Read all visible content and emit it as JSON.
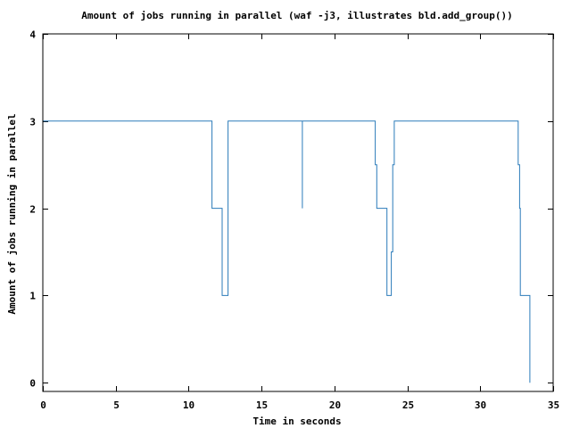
{
  "chart_data": {
    "type": "line",
    "title": "Amount of jobs running in parallel (waf -j3, illustrates bld.add_group())",
    "xlabel": "Time in seconds",
    "ylabel": "Amount of jobs running in parallel",
    "xlim": [
      0,
      35
    ],
    "ylim": [
      -0.1,
      4
    ],
    "xticks": [
      0,
      5,
      10,
      15,
      20,
      25,
      30,
      35
    ],
    "yticks": [
      0,
      1,
      2,
      3,
      4
    ],
    "xtick_labels": [
      "0",
      "5",
      "10",
      "15",
      "20",
      "25",
      "30",
      "35"
    ],
    "ytick_labels": [
      "0",
      "1",
      "2",
      "3",
      "4"
    ],
    "grid": false,
    "legend": "none",
    "line_style": "step",
    "color": "#2b7bba",
    "series": [
      {
        "points": [
          [
            0,
            3
          ],
          [
            11.6,
            3
          ],
          [
            11.6,
            2
          ],
          [
            12.3,
            2
          ],
          [
            12.3,
            1
          ],
          [
            12.7,
            1
          ],
          [
            12.7,
            3
          ],
          [
            17.8,
            3
          ],
          [
            17.8,
            2
          ],
          [
            17.8,
            3
          ],
          [
            22.8,
            3
          ],
          [
            22.8,
            2.5
          ],
          [
            22.9,
            2.5
          ],
          [
            22.9,
            2
          ],
          [
            23.6,
            2
          ],
          [
            23.6,
            1
          ],
          [
            23.9,
            1
          ],
          [
            23.9,
            1.5
          ],
          [
            24.0,
            1.5
          ],
          [
            24.0,
            2.5
          ],
          [
            24.1,
            2.5
          ],
          [
            24.1,
            3
          ],
          [
            32.6,
            3
          ],
          [
            32.6,
            2.5
          ],
          [
            32.7,
            2.5
          ],
          [
            32.7,
            2
          ],
          [
            32.75,
            2
          ],
          [
            32.75,
            1
          ],
          [
            33.4,
            1
          ],
          [
            33.4,
            0
          ]
        ]
      }
    ]
  }
}
